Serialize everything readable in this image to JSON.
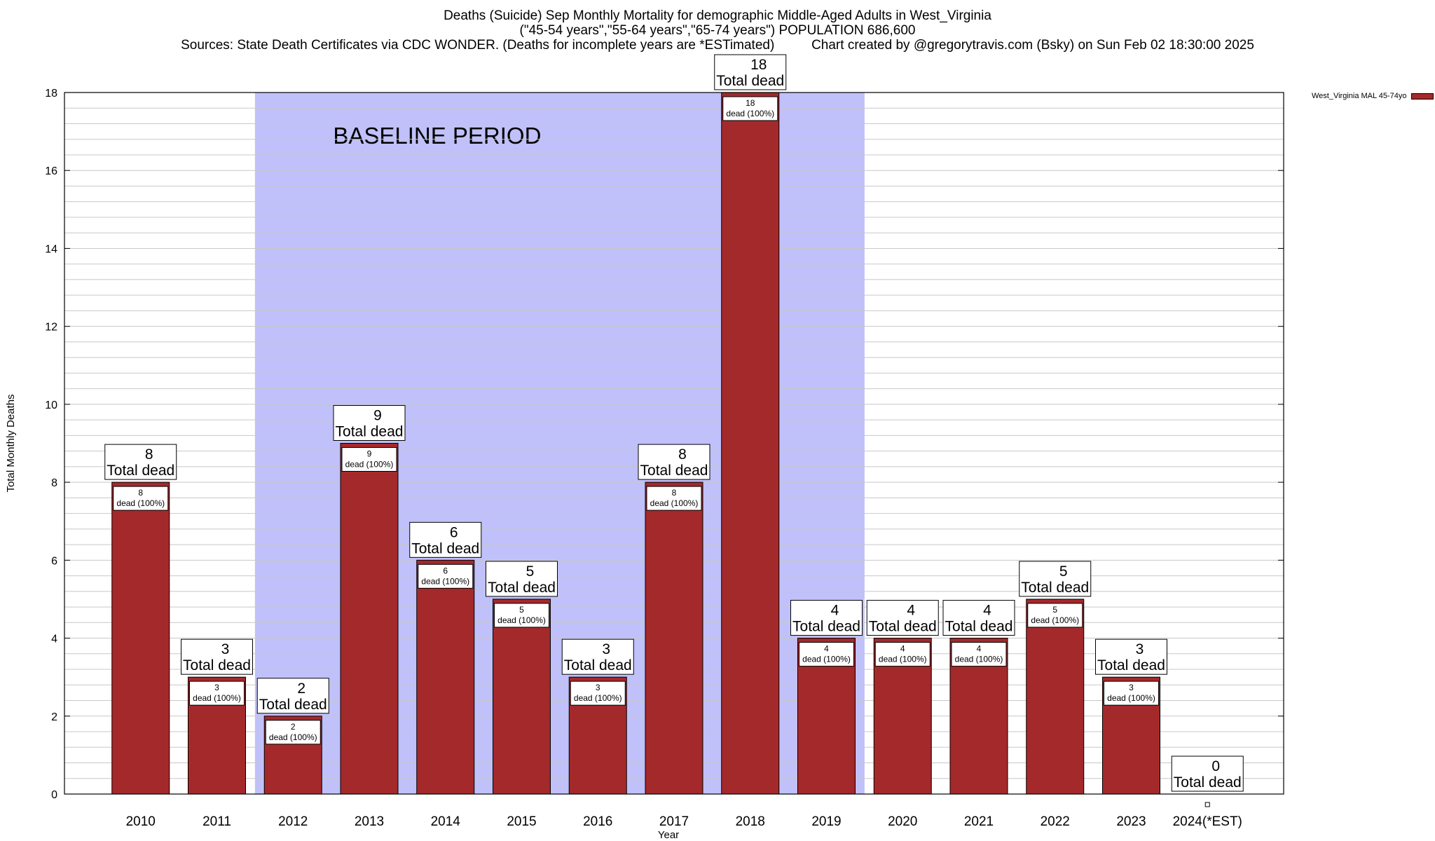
{
  "header": {
    "title_line1": "Deaths (Suicide) Sep Monthly Mortality for demographic Middle-Aged Adults in West_Virginia",
    "title_line2": "(\"45-54 years\",\"55-64 years\",\"65-74 years\") POPULATION 686,600",
    "title_line3_left": "Sources: State Death Certificates via CDC WONDER. (Deaths for incomplete years are *ESTimated)",
    "title_line3_right": "Chart created by @gregorytravis.com (Bsky) on Sun Feb 02 18:30:00 2025"
  },
  "legend": {
    "label": "West_Virginia MAL 45-74yo"
  },
  "colors": {
    "bar": "#a4292b",
    "baseline": "#c0c0fa",
    "grid": "#c8c8c8"
  },
  "chart_data": {
    "type": "bar",
    "categories": [
      "2010",
      "2011",
      "2012",
      "2013",
      "2014",
      "2015",
      "2016",
      "2017",
      "2018",
      "2019",
      "2020",
      "2021",
      "2022",
      "2023",
      "2024(*EST)"
    ],
    "series": [
      {
        "name": "West_Virginia MAL 45-74yo",
        "values": [
          8,
          3,
          2,
          9,
          6,
          5,
          3,
          8,
          18,
          4,
          4,
          4,
          5,
          3,
          0
        ]
      }
    ],
    "xlabel": "Year",
    "ylabel": "Total Monthly Deaths",
    "ylim": [
      0,
      18
    ],
    "yticks": [
      0,
      2,
      4,
      6,
      8,
      10,
      12,
      14,
      16,
      18
    ],
    "grid": true,
    "legend_position": "top-right",
    "baseline": {
      "label": "BASELINE PERIOD",
      "start": "2012",
      "end": "2019"
    },
    "total_label_suffix": "Total dead",
    "inner_label_suffix": "dead (100%)"
  }
}
